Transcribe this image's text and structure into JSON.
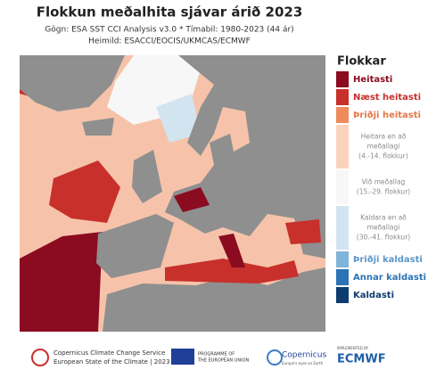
{
  "title": "Flokkun meðalhita sjávar árið 2023",
  "subtitle": [
    "Gögn: ESA SST CCI Analysis v3.0 * Tímabil: 1980-2023 (44 ár)",
    "Heimild: ESACCI/EOCIS/UKMCAS/ECMWF"
  ],
  "legend": {
    "title": "Flokkar",
    "items": [
      {
        "lines": [
          "Heitasti"
        ],
        "color": "#8b0b20",
        "text_color": "#8b0b20"
      },
      {
        "lines": [
          "Næst heitasti"
        ],
        "color": "#c8302c",
        "text_color": "#c8302c"
      },
      {
        "lines": [
          "Þriðji heitasti"
        ],
        "color": "#ef8a5d",
        "text_color": "#e5784a"
      },
      {
        "lines": [
          "Heitara en að",
          "meðallagi",
          "(4.-14. flokkur)"
        ],
        "color": "#fad3bd",
        "text_color": "#8a8a8a"
      },
      {
        "lines": [
          "Við meðallag",
          "(15.-29. flokkur)"
        ],
        "color": "#f7f7f7",
        "text_color": "#8a8a8a"
      },
      {
        "lines": [
          "Kaldara en að",
          "meðallagi",
          "(30.-41. flokkur)"
        ],
        "color": "#d3e4f1",
        "text_color": "#8a8a8a"
      },
      {
        "lines": [
          "Þriðji kaldasti"
        ],
        "color": "#80b4da",
        "text_color": "#5b97c8"
      },
      {
        "lines": [
          "Annar kaldasti"
        ],
        "color": "#2b73b4",
        "text_color": "#2b73b4"
      },
      {
        "lines": [
          "Kaldasti"
        ],
        "color": "#0d3c6e",
        "text_color": "#0d3c6e"
      }
    ]
  },
  "footer": {
    "c3s": [
      "Copernicus Climate Change Service",
      "European State of the Climate | 2023"
    ],
    "eu": [
      "PROGRAMME OF",
      "THE EUROPEAN UNION"
    ],
    "copernicus": [
      "Copernicus",
      "Europe's eyes on Earth"
    ],
    "ecmwf": [
      "IMPLEMENTED BY",
      "ECMWF"
    ]
  }
}
